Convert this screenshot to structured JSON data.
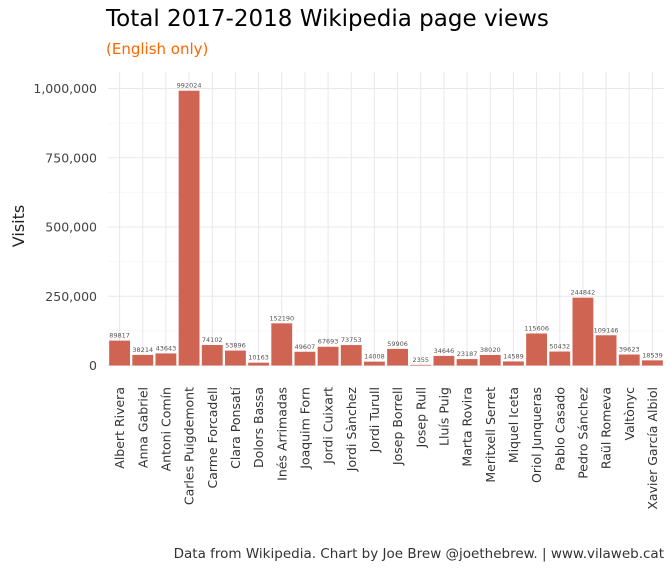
{
  "title": "Total 2017-2018 Wikipedia page views",
  "subtitle": "(English only)",
  "caption": "Data from Wikipedia. Chart by Joe Brew @joethebrew. | www.vilaweb.cat",
  "colors": {
    "bar": "#d06452",
    "subtitle": "#ff6600",
    "grid": "#e8e8e8"
  },
  "chart_data": {
    "type": "bar",
    "ylabel": "Visits",
    "xlabel": "",
    "ylim": [
      0,
      1050000
    ],
    "yticks": [
      0,
      250000,
      500000,
      750000,
      1000000
    ],
    "ytick_labels": [
      "0",
      "250,000",
      "500,000",
      "750,000",
      "1,000,000"
    ],
    "grid": true,
    "categories": [
      "Albert Rivera",
      "Anna Gabriel",
      "Antoni Comín",
      "Carles Puigdemont",
      "Carme Forcadell",
      "Clara Ponsatí",
      "Dolors Bassa",
      "Inés Arrimadas",
      "Joaquim Forn",
      "Jordi Cuixart",
      "Jordi Sànchez",
      "Jordi Turull",
      "Josep Borrell",
      "Josep Rull",
      "Lluís Puig",
      "Marta Rovira",
      "Meritxell Serret",
      "Miquel Iceta",
      "Oriol Junqueras",
      "Pablo Casado",
      "Pedro Sánchez",
      "Raül Romeva",
      "Valtònyc",
      "Xavier García Albiol"
    ],
    "values": [
      89817,
      38214,
      43643,
      992024,
      74102,
      53896,
      10163,
      152190,
      49607,
      67693,
      73753,
      14008,
      59906,
      2355,
      34646,
      23187,
      38020,
      14589,
      115606,
      50432,
      244842,
      109146,
      39623,
      18539
    ]
  }
}
